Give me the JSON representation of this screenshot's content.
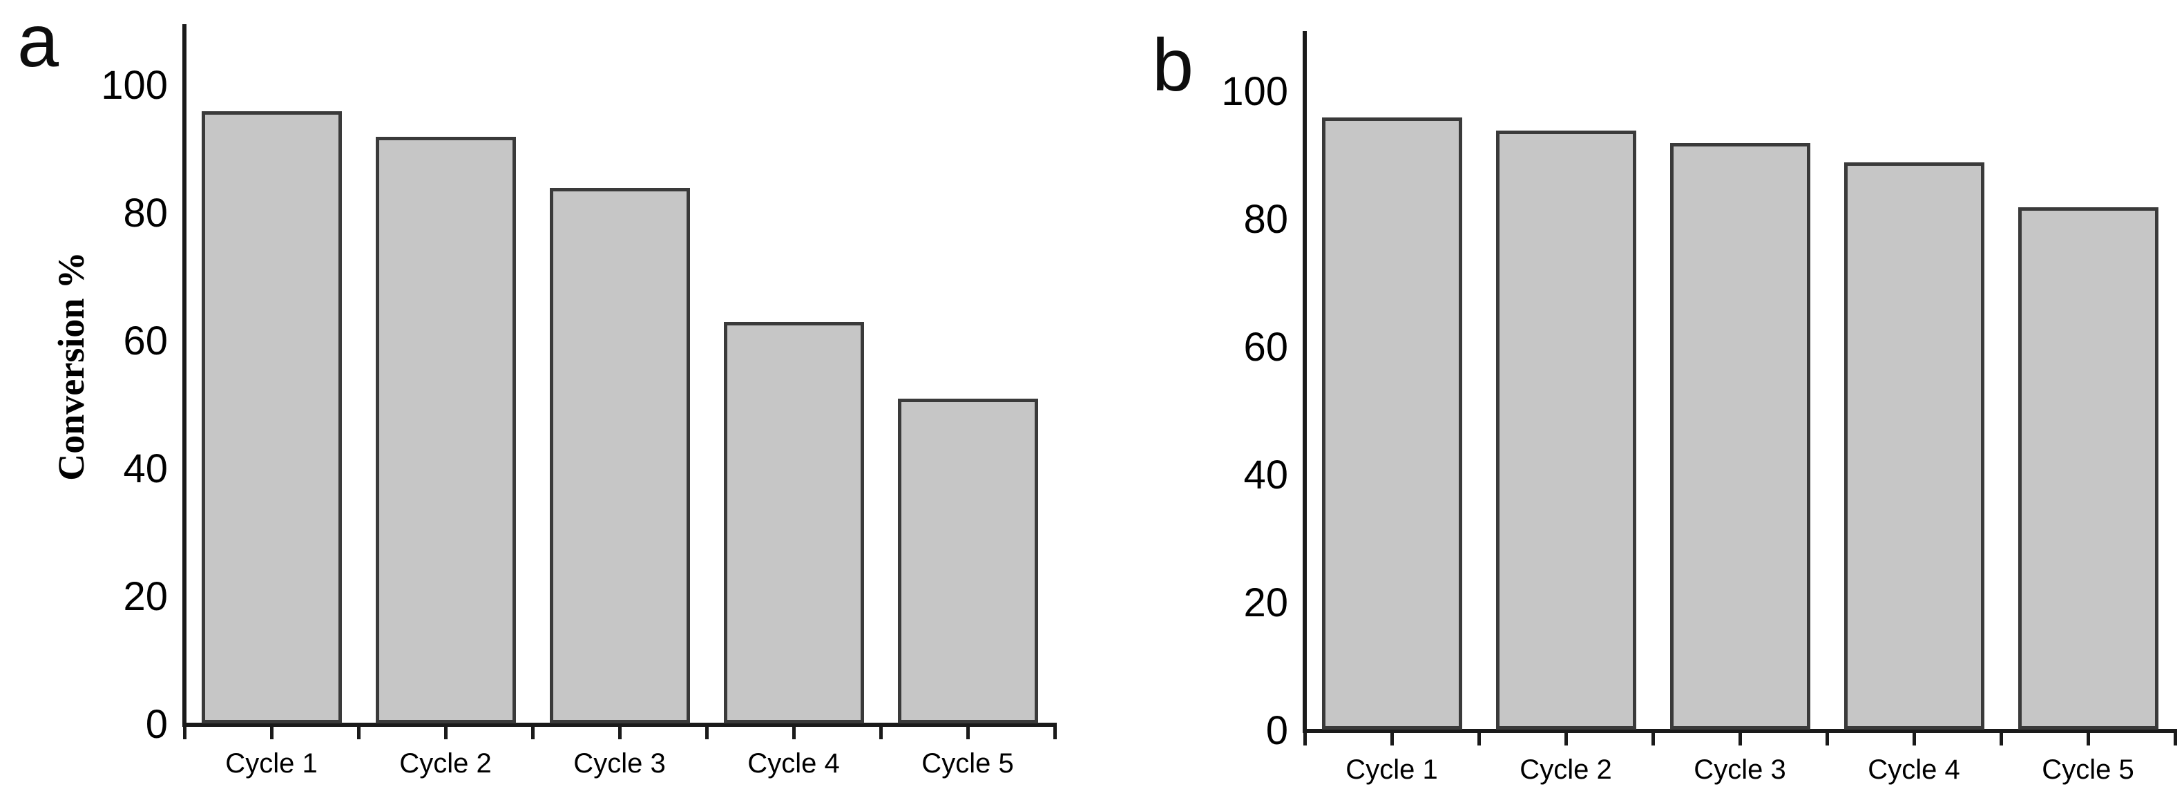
{
  "figure": {
    "background": "#ffffff"
  },
  "panels": {
    "a": {
      "letter": "a"
    },
    "b": {
      "letter": "b"
    }
  },
  "chart_data": [
    {
      "type": "bar",
      "panel": "a",
      "title": "",
      "categories": [
        "Cycle 1",
        "Cycle 2",
        "Cycle 3",
        "Cycle 4",
        "Cycle 5"
      ],
      "values": [
        96,
        92,
        84,
        63,
        51
      ],
      "xlabel": "",
      "ylabel": "Conversion %",
      "yticks": [
        0,
        20,
        40,
        60,
        80,
        100
      ],
      "ylim": [
        0,
        110
      ],
      "grid": false,
      "legend": false,
      "bar_fill": "#c6c6c6",
      "bar_border": "#3a3a3a",
      "axis_color": "#1a1a1a",
      "text_color": "#000000"
    },
    {
      "type": "bar",
      "panel": "b",
      "title": "",
      "categories": [
        "Cycle 1",
        "Cycle 2",
        "Cycle 3",
        "Cycle 4",
        "Cycle 5"
      ],
      "values": [
        96,
        94,
        92,
        89,
        82
      ],
      "xlabel": "",
      "ylabel": "",
      "yticks": [
        0,
        20,
        40,
        60,
        80,
        100
      ],
      "ylim": [
        0,
        110
      ],
      "grid": false,
      "legend": false,
      "bar_fill": "#c6c6c6",
      "bar_border": "#3a3a3a",
      "axis_color": "#1a1a1a",
      "text_color": "#000000"
    }
  ]
}
